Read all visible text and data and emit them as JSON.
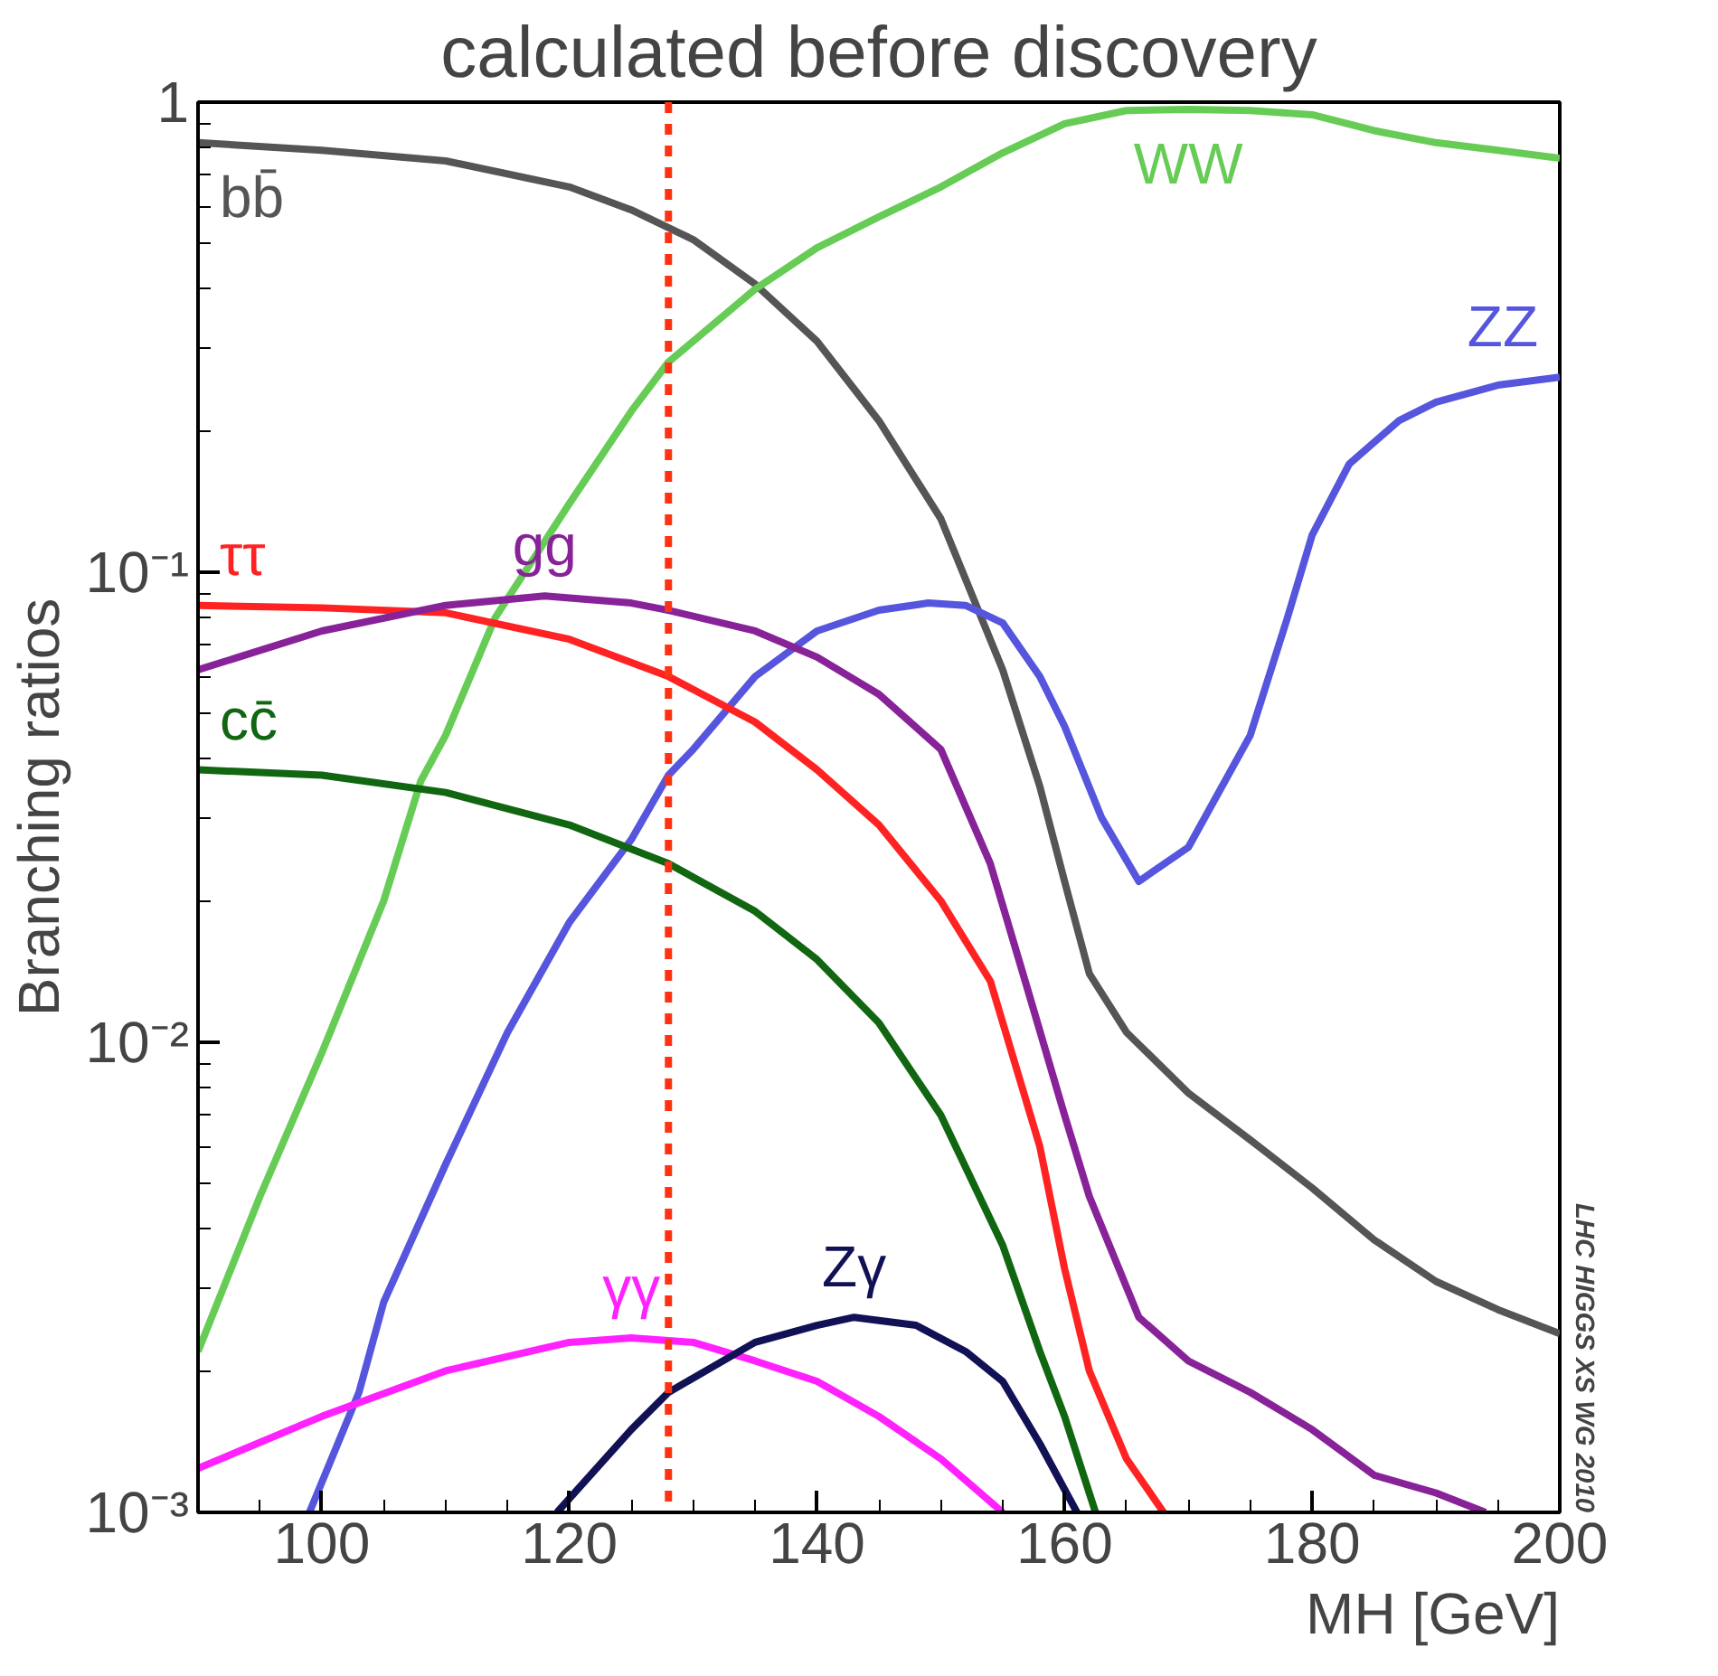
{
  "chart_data": {
    "type": "line",
    "title": "calculated before discovery",
    "xlabel": "MH [GeV]",
    "ylabel": "Branching ratios",
    "annotations": [
      "LHC HIGGS XS WG 2010"
    ],
    "log": "y",
    "grid": false,
    "legend": false,
    "line_style": "solid",
    "xlim": [
      90,
      200
    ],
    "ylim": [
      0.001,
      1
    ],
    "xticks": [
      100,
      120,
      140,
      160,
      180,
      200
    ],
    "yticks": [
      {
        "value": 0.001,
        "label": "10⁻³"
      },
      {
        "value": 0.01,
        "label": "10⁻²"
      },
      {
        "value": 0.1,
        "label": "10⁻¹"
      },
      1
    ],
    "ref_lines": [
      {
        "axis": "x",
        "value": 128,
        "color": "#ff3311",
        "line_style": "dashed"
      }
    ],
    "series": [
      {
        "name": "bb̄",
        "color": "#555555",
        "x": [
          90,
          100,
          110,
          120,
          125,
          130,
          135,
          140,
          145,
          150,
          155,
          158,
          160,
          162,
          165,
          170,
          175,
          180,
          185,
          190,
          195,
          200
        ],
        "values": [
          0.82,
          0.79,
          0.75,
          0.66,
          0.59,
          0.51,
          0.41,
          0.31,
          0.21,
          0.13,
          0.062,
          0.035,
          0.022,
          0.014,
          0.0105,
          0.0078,
          0.0062,
          0.0049,
          0.0038,
          0.0031,
          0.0027,
          0.0024
        ]
      },
      {
        "name": "WW",
        "color": "#66cc55",
        "x": [
          90,
          95,
          100,
          105,
          108,
          110,
          114,
          120,
          125,
          128,
          130,
          135,
          140,
          145,
          150,
          155,
          160,
          165,
          170,
          175,
          180,
          185,
          190,
          195,
          200
        ],
        "values": [
          0.0022,
          0.0047,
          0.0095,
          0.02,
          0.036,
          0.045,
          0.08,
          0.14,
          0.22,
          0.28,
          0.31,
          0.4,
          0.49,
          0.57,
          0.66,
          0.78,
          0.9,
          0.96,
          0.965,
          0.96,
          0.94,
          0.87,
          0.82,
          0.79,
          0.76
        ]
      },
      {
        "name": "ZZ",
        "color": "#5555dd",
        "x": [
          99,
          103,
          105,
          110,
          115,
          120,
          125,
          128,
          130,
          135,
          140,
          145,
          149,
          152,
          155,
          158,
          160,
          163,
          166,
          170,
          175,
          178,
          180,
          183,
          187,
          190,
          195,
          200
        ],
        "values": [
          0.001,
          0.0018,
          0.0028,
          0.0055,
          0.0105,
          0.018,
          0.027,
          0.037,
          0.042,
          0.06,
          0.075,
          0.083,
          0.086,
          0.085,
          0.078,
          0.06,
          0.047,
          0.03,
          0.022,
          0.026,
          0.045,
          0.08,
          0.12,
          0.17,
          0.21,
          0.23,
          0.25,
          0.26
        ]
      },
      {
        "name": "ττ",
        "color": "#ff2222",
        "x": [
          90,
          100,
          110,
          120,
          128,
          135,
          140,
          145,
          150,
          154,
          158,
          160,
          162,
          165,
          168
        ],
        "values": [
          0.085,
          0.084,
          0.082,
          0.072,
          0.06,
          0.048,
          0.038,
          0.029,
          0.02,
          0.0135,
          0.006,
          0.0033,
          0.002,
          0.0013,
          0.001
        ]
      },
      {
        "name": "gg",
        "color": "#882299",
        "x": [
          90,
          100,
          110,
          118,
          125,
          128,
          135,
          140,
          145,
          150,
          154,
          157,
          160,
          162,
          166,
          170,
          175,
          180,
          185,
          190,
          194
        ],
        "values": [
          0.062,
          0.075,
          0.085,
          0.089,
          0.086,
          0.083,
          0.075,
          0.066,
          0.055,
          0.042,
          0.024,
          0.013,
          0.007,
          0.0047,
          0.0026,
          0.0021,
          0.0018,
          0.0015,
          0.0012,
          0.0011,
          0.001
        ]
      },
      {
        "name": "cc̄",
        "color": "#116611",
        "x": [
          90,
          100,
          110,
          120,
          128,
          135,
          140,
          145,
          150,
          155,
          158,
          160,
          162.5
        ],
        "values": [
          0.038,
          0.037,
          0.034,
          0.029,
          0.024,
          0.019,
          0.015,
          0.011,
          0.007,
          0.0037,
          0.0022,
          0.0016,
          0.001
        ]
      },
      {
        "name": "γγ",
        "color": "#ff22ff",
        "x": [
          90,
          100,
          110,
          120,
          125,
          130,
          135,
          140,
          145,
          150,
          155
        ],
        "values": [
          0.00124,
          0.0016,
          0.002,
          0.0023,
          0.00235,
          0.0023,
          0.0021,
          0.0019,
          0.0016,
          0.0013,
          0.001
        ]
      },
      {
        "name": "Zγ",
        "color": "#111155",
        "x": [
          119,
          125,
          128,
          135,
          140,
          143,
          148,
          152,
          155,
          158,
          161
        ],
        "values": [
          0.001,
          0.0015,
          0.0018,
          0.0023,
          0.0025,
          0.0026,
          0.0025,
          0.0022,
          0.0019,
          0.0014,
          0.001
        ]
      }
    ]
  }
}
